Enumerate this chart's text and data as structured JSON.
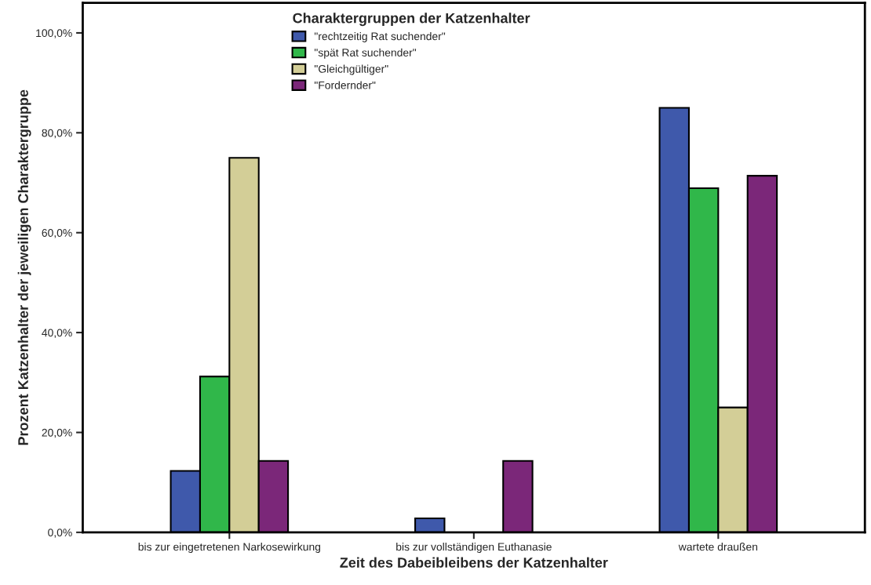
{
  "chart_data": {
    "type": "bar",
    "xlabel": "Zeit des Dabeibleibens der Katzenhalter",
    "ylabel": "Prozent Katzenhalter der jeweiligen Charaktergruppe",
    "legend_title": "Charaktergruppen der Katzenhalter",
    "legend": "top",
    "grid": false,
    "categories": [
      "bis zur eingetretenen Narkosewirkung",
      "bis zur vollständigen Euthanasie",
      "wartete draußen"
    ],
    "series": [
      {
        "name": "\"rechtzeitig Rat suchender\"",
        "color": "#3f59ab",
        "values": [
          12.3,
          2.8,
          85.0
        ]
      },
      {
        "name": "\"spät Rat suchender\"",
        "color": "#30b74a",
        "values": [
          31.2,
          0,
          68.9
        ]
      },
      {
        "name": "\"Gleichgültiger\"",
        "color": "#d3ce97",
        "values": [
          75.0,
          0,
          25.0
        ]
      },
      {
        "name": "\"Fordernder\"",
        "color": "#7b2779",
        "values": [
          14.3,
          14.3,
          71.4
        ]
      }
    ],
    "ylim": [
      0,
      100
    ],
    "yticks": [
      {
        "value": 0,
        "label": "0,0%"
      },
      {
        "value": 20,
        "label": "20,0%"
      },
      {
        "value": 40,
        "label": "40,0%"
      },
      {
        "value": 60,
        "label": "60,0%"
      },
      {
        "value": 80,
        "label": "80,0%"
      },
      {
        "value": 100,
        "label": "100,0%"
      }
    ]
  }
}
